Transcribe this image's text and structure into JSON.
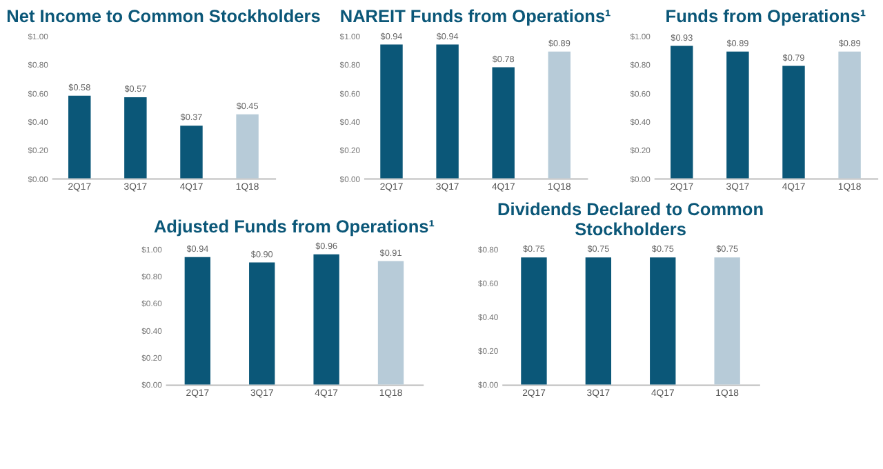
{
  "chart_data": [
    {
      "type": "bar",
      "title": "Net Income to Common Stockholders",
      "categories": [
        "2Q17",
        "3Q17",
        "4Q17",
        "1Q18"
      ],
      "values": [
        0.58,
        0.57,
        0.37,
        0.45
      ],
      "colors": [
        "#0b5778",
        "#0b5778",
        "#0b5778",
        "#b7cbd8"
      ],
      "value_labels": [
        "$0.58",
        "$0.57",
        "$0.37",
        "$0.45"
      ],
      "ylim": [
        0,
        1
      ],
      "yticks": [
        {
          "value": 0,
          "label": "$0.00"
        },
        {
          "value": 0.2,
          "label": "$0.20"
        },
        {
          "value": 0.4,
          "label": "$0.40"
        },
        {
          "value": 0.6,
          "label": "$0.60"
        },
        {
          "value": 0.8,
          "label": "$0.80"
        },
        {
          "value": 1,
          "label": "$1.00"
        }
      ],
      "grid": false
    },
    {
      "type": "bar",
      "title": "NAREIT Funds from Operations¹",
      "categories": [
        "2Q17",
        "3Q17",
        "4Q17",
        "1Q18"
      ],
      "values": [
        0.94,
        0.94,
        0.78,
        0.89
      ],
      "colors": [
        "#0b5778",
        "#0b5778",
        "#0b5778",
        "#b7cbd8"
      ],
      "value_labels": [
        "$0.94",
        "$0.94",
        "$0.78",
        "$0.89"
      ],
      "ylim": [
        0,
        1
      ],
      "yticks": [
        {
          "value": 0,
          "label": "$0.00"
        },
        {
          "value": 0.2,
          "label": "$0.20"
        },
        {
          "value": 0.4,
          "label": "$0.40"
        },
        {
          "value": 0.6,
          "label": "$0.60"
        },
        {
          "value": 0.8,
          "label": "$0.80"
        },
        {
          "value": 1,
          "label": "$1.00"
        }
      ],
      "grid": false
    },
    {
      "type": "bar",
      "title": "Funds from Operations¹",
      "categories": [
        "2Q17",
        "3Q17",
        "4Q17",
        "1Q18"
      ],
      "values": [
        0.93,
        0.89,
        0.79,
        0.89
      ],
      "colors": [
        "#0b5778",
        "#0b5778",
        "#0b5778",
        "#b7cbd8"
      ],
      "value_labels": [
        "$0.93",
        "$0.89",
        "$0.79",
        "$0.89"
      ],
      "ylim": [
        0,
        1
      ],
      "yticks": [
        {
          "value": 0,
          "label": "$0.00"
        },
        {
          "value": 0.2,
          "label": "$0.20"
        },
        {
          "value": 0.4,
          "label": "$0.40"
        },
        {
          "value": 0.6,
          "label": "$0.60"
        },
        {
          "value": 0.8,
          "label": "$0.80"
        },
        {
          "value": 1,
          "label": "$1.00"
        }
      ],
      "grid": false
    },
    {
      "type": "bar",
      "title": "Adjusted Funds from Operations¹",
      "categories": [
        "2Q17",
        "3Q17",
        "4Q17",
        "1Q18"
      ],
      "values": [
        0.94,
        0.9,
        0.96,
        0.91
      ],
      "colors": [
        "#0b5778",
        "#0b5778",
        "#0b5778",
        "#b7cbd8"
      ],
      "value_labels": [
        "$0.94",
        "$0.90",
        "$0.96",
        "$0.91"
      ],
      "ylim": [
        0,
        1
      ],
      "yticks": [
        {
          "value": 0,
          "label": "$0.00"
        },
        {
          "value": 0.2,
          "label": "$0.20"
        },
        {
          "value": 0.4,
          "label": "$0.40"
        },
        {
          "value": 0.6,
          "label": "$0.60"
        },
        {
          "value": 0.8,
          "label": "$0.80"
        },
        {
          "value": 1,
          "label": "$1.00"
        }
      ],
      "grid": false
    },
    {
      "type": "bar",
      "title": "Dividends Declared to Common Stockholders",
      "categories": [
        "2Q17",
        "3Q17",
        "4Q17",
        "1Q18"
      ],
      "values": [
        0.75,
        0.75,
        0.75,
        0.75
      ],
      "colors": [
        "#0b5778",
        "#0b5778",
        "#0b5778",
        "#b7cbd8"
      ],
      "value_labels": [
        "$0.75",
        "$0.75",
        "$0.75",
        "$0.75"
      ],
      "ylim": [
        0,
        0.8
      ],
      "yticks": [
        {
          "value": 0,
          "label": "$0.00"
        },
        {
          "value": 0.2,
          "label": "$0.20"
        },
        {
          "value": 0.4,
          "label": "$0.40"
        },
        {
          "value": 0.6,
          "label": "$0.60"
        },
        {
          "value": 0.8,
          "label": "$0.80"
        }
      ],
      "grid": false
    }
  ]
}
